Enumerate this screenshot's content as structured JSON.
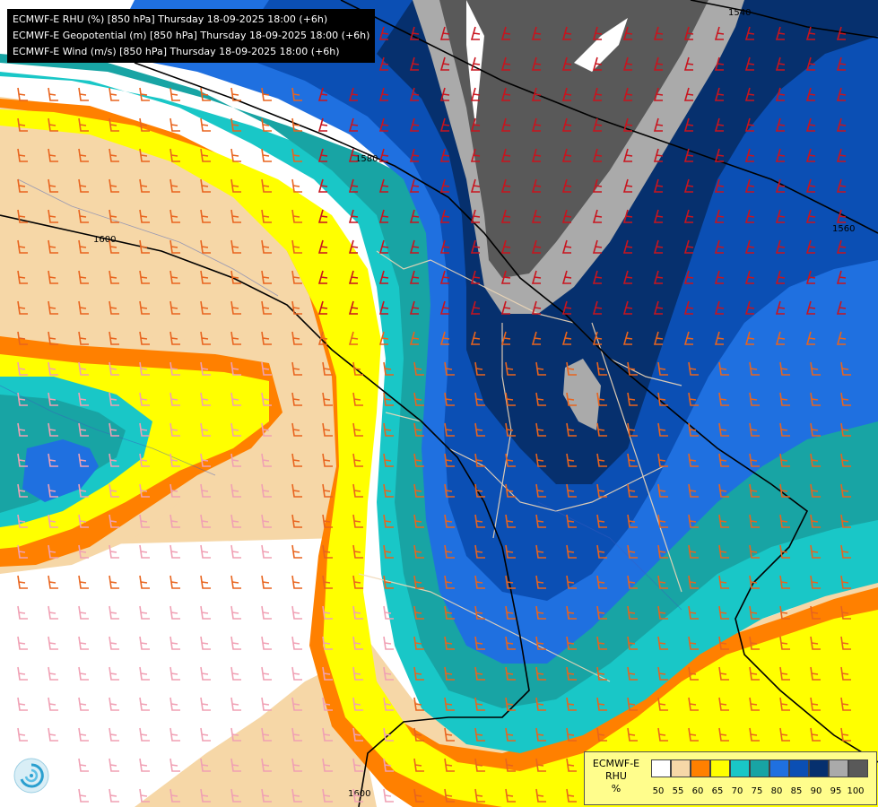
{
  "title_lines": [
    "ECMWF-E RHU (%) [850 hPa] Thursday 18-09-2025 18:00 (+6h)",
    "ECMWF-E Geopotential (m) [850 hPa] Thursday 18-09-2025 18:00 (+6h)",
    "ECMWF-E Wind (m/s) [850 hPa] Thursday 18-09-2025 18:00 (+6h)"
  ],
  "contour_labels": [
    "1540",
    "1560",
    "1580",
    "1600",
    "1600"
  ],
  "legend": {
    "title_lines": [
      "ECMWF-E",
      "RHU",
      "%"
    ],
    "ticks": [
      "50",
      "55",
      "60",
      "65",
      "70",
      "75",
      "80",
      "85",
      "90",
      "95",
      "100"
    ],
    "colors": [
      "#ffffff",
      "#f6d7a7",
      "#ff8000",
      "#ffff00",
      "#19c7c7",
      "#18a4a4",
      "#1f70e0",
      "#0b4fb4",
      "#06306e",
      "#aaaaaa",
      "#595959"
    ]
  },
  "colors": {
    "rhu_50": "#ffffff",
    "rhu_55": "#f6d7a7",
    "rhu_60": "#ff8000",
    "rhu_65": "#ffff00",
    "rhu_70": "#19c7c7",
    "rhu_75": "#18a4a4",
    "rhu_80": "#1f70e0",
    "rhu_85": "#0b4fb4",
    "rhu_90": "#06306e",
    "rhu_95": "#aaaaaa",
    "rhu_100": "#595959"
  },
  "logo_icon": "ecmwf-swirl-icon"
}
